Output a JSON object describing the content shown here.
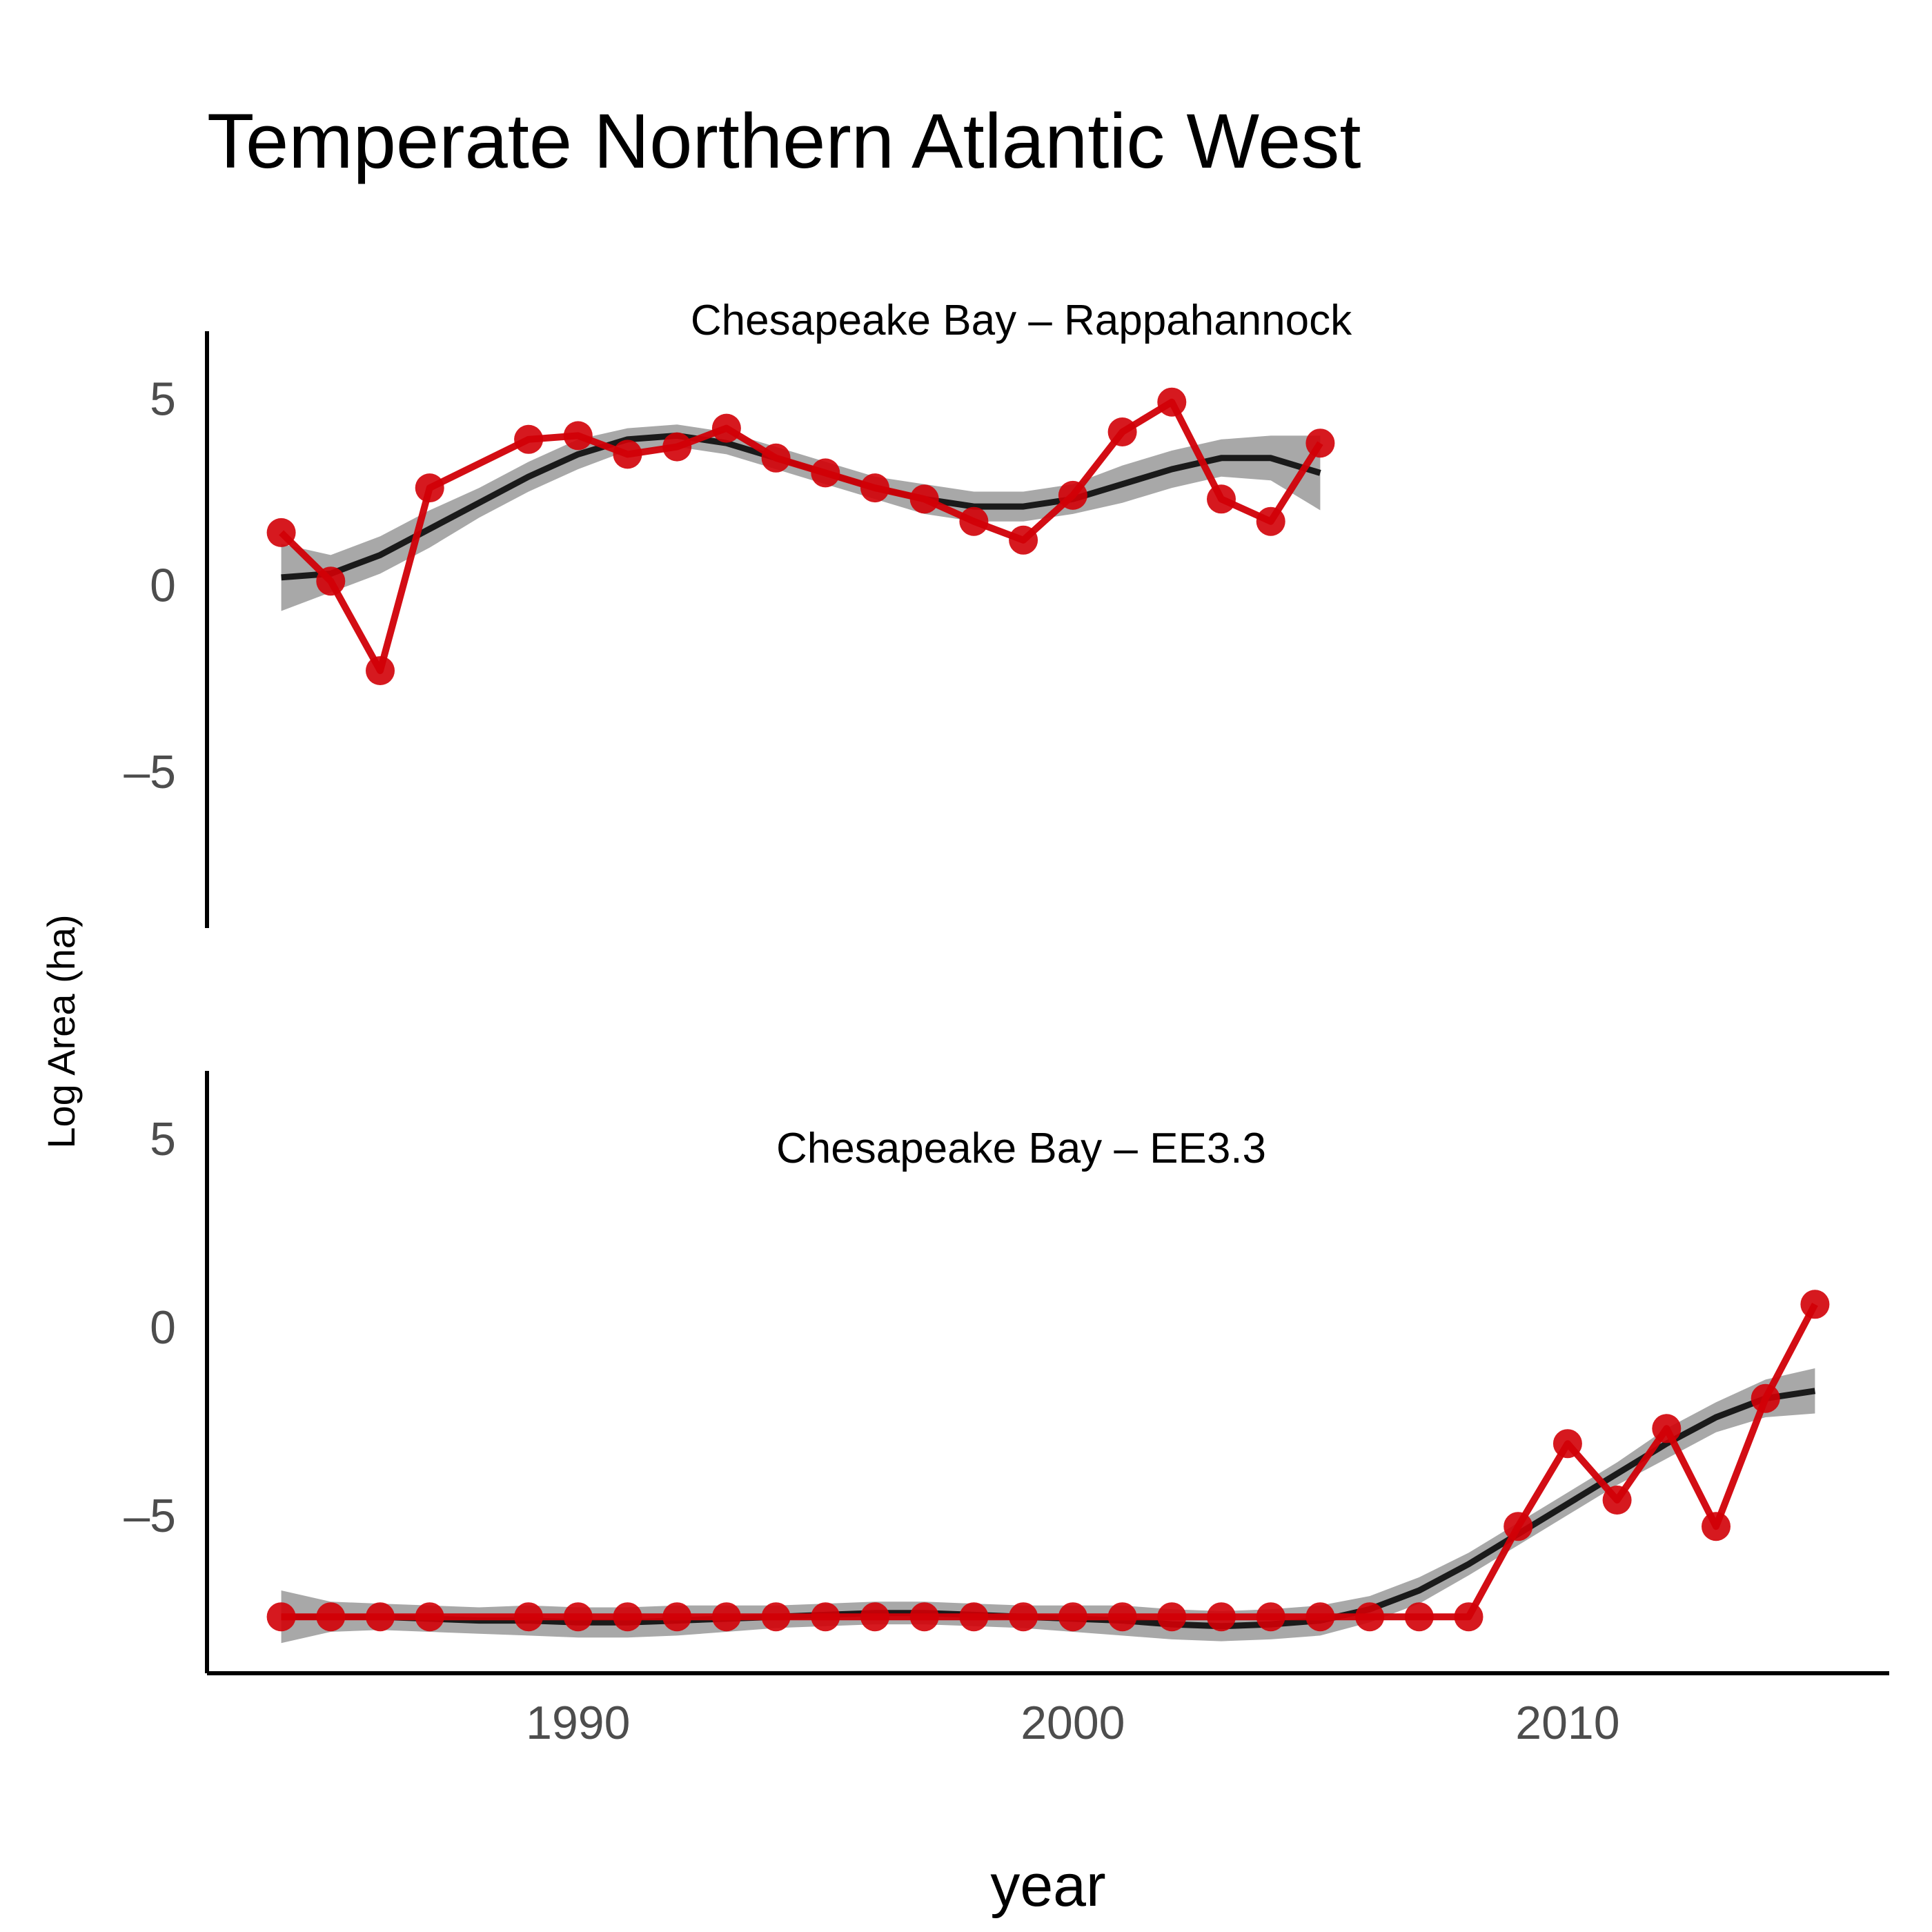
{
  "chart_data": {
    "type": "line",
    "title": "Temperate Northern Atlantic West",
    "xlabel": "year",
    "ylabel": "Log Area (ha)",
    "xlim": [
      1982.5,
      2016.5
    ],
    "ylim": [
      -9.2,
      6.8
    ],
    "x_ticks": [
      1990,
      2000,
      2010
    ],
    "y_ticks": [
      5,
      0,
      -5
    ],
    "y_tick_labels": [
      "5",
      "0",
      "–5"
    ],
    "colors": {
      "observed": "#d10007",
      "smooth": "#1a1a1a",
      "band": "#999999",
      "axis": "#000000"
    },
    "grid": false,
    "legend": "none",
    "panels": [
      {
        "facet_title": "Chesapeake Bay – Rappahannock",
        "observed": {
          "x": [
            1984,
            1985,
            1986,
            1987,
            1989,
            1990,
            1991,
            1992,
            1993,
            1994,
            1995,
            1996,
            1997,
            1998,
            1999,
            2000,
            2001,
            2002,
            2003,
            2004,
            2005
          ],
          "y": [
            1.4,
            0.1,
            -2.3,
            2.6,
            3.9,
            4.0,
            3.5,
            3.7,
            4.2,
            3.4,
            3.0,
            2.6,
            2.3,
            1.7,
            1.2,
            2.4,
            4.1,
            4.9,
            2.3,
            1.7,
            3.8
          ]
        },
        "smooth": {
          "x": [
            1984,
            1985,
            1986,
            1987,
            1988,
            1989,
            1990,
            1991,
            1992,
            1993,
            1994,
            1995,
            1996,
            1997,
            1998,
            1999,
            2000,
            2001,
            2002,
            2003,
            2004,
            2005
          ],
          "y": [
            0.2,
            0.3,
            0.8,
            1.5,
            2.2,
            2.9,
            3.5,
            3.9,
            4.0,
            3.8,
            3.4,
            3.0,
            2.6,
            2.3,
            2.1,
            2.1,
            2.3,
            2.7,
            3.1,
            3.4,
            3.4,
            3.0
          ],
          "lower": [
            -0.7,
            -0.2,
            0.3,
            1.0,
            1.8,
            2.5,
            3.1,
            3.6,
            3.7,
            3.5,
            3.1,
            2.7,
            2.3,
            1.9,
            1.7,
            1.7,
            1.9,
            2.2,
            2.6,
            2.9,
            2.8,
            2.0
          ],
          "upper": [
            1.1,
            0.8,
            1.3,
            2.0,
            2.6,
            3.3,
            3.9,
            4.2,
            4.3,
            4.1,
            3.7,
            3.3,
            2.9,
            2.7,
            2.5,
            2.5,
            2.7,
            3.2,
            3.6,
            3.9,
            4.0,
            4.0
          ]
        }
      },
      {
        "facet_title": "Chesapeake Bay – EE3.3",
        "observed": {
          "x": [
            1984,
            1985,
            1986,
            1987,
            1989,
            1990,
            1991,
            1992,
            1993,
            1994,
            1995,
            1996,
            1997,
            1998,
            1999,
            2000,
            2001,
            2002,
            2003,
            2004,
            2005,
            2006,
            2007,
            2008,
            2009,
            2010,
            2011,
            2012,
            2013,
            2014,
            2015
          ],
          "y": [
            -7.7,
            -7.7,
            -7.7,
            -7.7,
            -7.7,
            -7.7,
            -7.7,
            -7.7,
            -7.7,
            -7.7,
            -7.7,
            -7.7,
            -7.7,
            -7.7,
            -7.7,
            -7.7,
            -7.7,
            -7.7,
            -7.7,
            -7.7,
            -7.7,
            -7.7,
            -7.7,
            -7.7,
            -5.3,
            -3.1,
            -4.6,
            -2.7,
            -5.3,
            -1.9,
            0.6
          ]
        },
        "smooth": {
          "x": [
            1984,
            1985,
            1986,
            1987,
            1988,
            1989,
            1990,
            1991,
            1992,
            1993,
            1994,
            1995,
            1996,
            1997,
            1998,
            1999,
            2000,
            2001,
            2002,
            2003,
            2004,
            2005,
            2006,
            2007,
            2008,
            2009,
            2010,
            2011,
            2012,
            2013,
            2014,
            2015
          ],
          "y": [
            -7.7,
            -7.7,
            -7.7,
            -7.75,
            -7.8,
            -7.8,
            -7.85,
            -7.85,
            -7.8,
            -7.75,
            -7.7,
            -7.65,
            -7.6,
            -7.6,
            -7.65,
            -7.7,
            -7.75,
            -7.8,
            -7.9,
            -7.95,
            -7.9,
            -7.8,
            -7.5,
            -7.0,
            -6.3,
            -5.5,
            -4.7,
            -3.9,
            -3.1,
            -2.4,
            -1.9,
            -1.7
          ],
          "lower": [
            -8.4,
            -8.1,
            -8.05,
            -8.1,
            -8.15,
            -8.2,
            -8.25,
            -8.25,
            -8.2,
            -8.1,
            -8.0,
            -7.95,
            -7.9,
            -7.9,
            -7.95,
            -8.0,
            -8.1,
            -8.2,
            -8.3,
            -8.35,
            -8.3,
            -8.2,
            -7.85,
            -7.35,
            -6.6,
            -5.8,
            -5.0,
            -4.2,
            -3.5,
            -2.8,
            -2.4,
            -2.3
          ],
          "upper": [
            -7.0,
            -7.3,
            -7.35,
            -7.4,
            -7.45,
            -7.4,
            -7.45,
            -7.45,
            -7.4,
            -7.4,
            -7.4,
            -7.35,
            -7.3,
            -7.3,
            -7.35,
            -7.4,
            -7.4,
            -7.4,
            -7.5,
            -7.55,
            -7.5,
            -7.4,
            -7.15,
            -6.65,
            -6.0,
            -5.2,
            -4.4,
            -3.6,
            -2.7,
            -2.0,
            -1.4,
            -1.1
          ]
        }
      }
    ]
  }
}
